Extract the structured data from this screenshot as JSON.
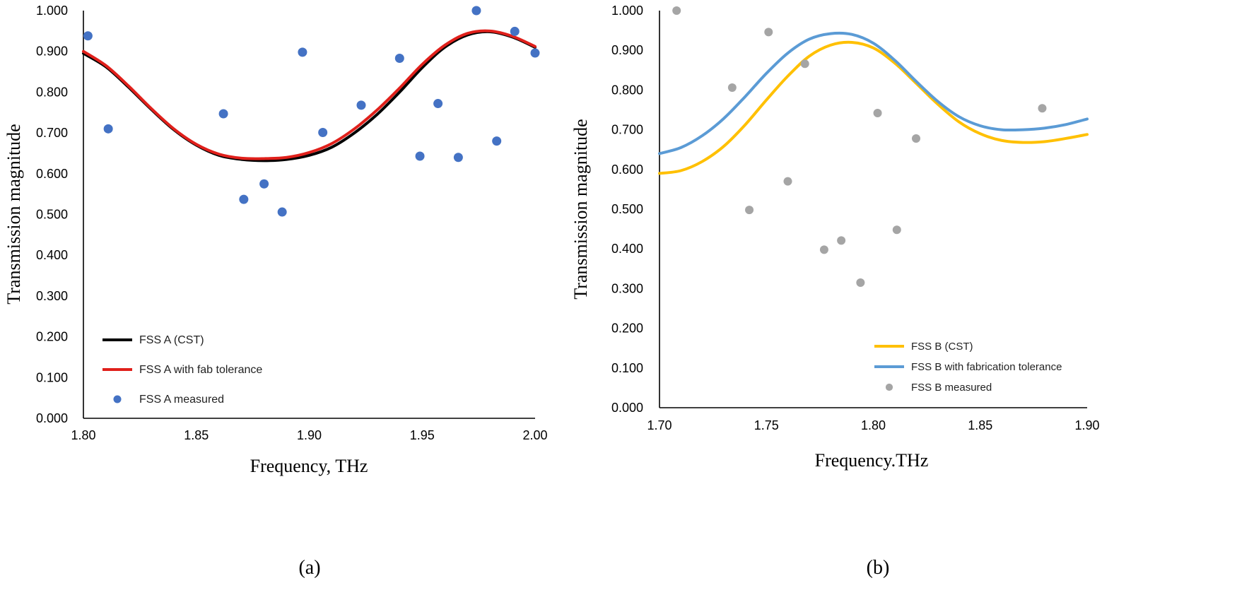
{
  "chart_data": [
    {
      "type": "line",
      "panel_label": "(a)",
      "xlabel": "Frequency,  THz",
      "ylabel": "Transmission magnitude",
      "xlim": [
        1.8,
        2.0
      ],
      "ylim": [
        0.0,
        1.0
      ],
      "x_ticks": [
        "1.80",
        "1.85",
        "1.90",
        "1.95",
        "2.00"
      ],
      "y_ticks": [
        "0.000",
        "0.100",
        "0.200",
        "0.300",
        "0.400",
        "0.500",
        "0.600",
        "0.700",
        "0.800",
        "0.900",
        "1.000"
      ],
      "grid": false,
      "legend_position": "bottom-left",
      "series": [
        {
          "name": "FSS A (CST)",
          "kind": "line",
          "color": "#000000",
          "x": [
            1.8,
            1.81,
            1.82,
            1.83,
            1.84,
            1.85,
            1.86,
            1.87,
            1.88,
            1.89,
            1.9,
            1.91,
            1.92,
            1.93,
            1.94,
            1.95,
            1.96,
            1.97,
            1.98,
            1.99,
            2.0
          ],
          "y": [
            0.895,
            0.862,
            0.812,
            0.758,
            0.708,
            0.67,
            0.645,
            0.635,
            0.632,
            0.635,
            0.645,
            0.665,
            0.7,
            0.745,
            0.8,
            0.86,
            0.91,
            0.94,
            0.948,
            0.935,
            0.91
          ]
        },
        {
          "name": "FSS A with fab tolerance",
          "kind": "line",
          "color": "#e0201b",
          "x": [
            1.8,
            1.81,
            1.82,
            1.83,
            1.84,
            1.85,
            1.86,
            1.87,
            1.88,
            1.89,
            1.9,
            1.91,
            1.92,
            1.93,
            1.94,
            1.95,
            1.96,
            1.97,
            1.98,
            1.99,
            2.0
          ],
          "y": [
            0.9,
            0.865,
            0.815,
            0.76,
            0.71,
            0.672,
            0.648,
            0.638,
            0.637,
            0.64,
            0.652,
            0.674,
            0.71,
            0.756,
            0.81,
            0.868,
            0.915,
            0.944,
            0.95,
            0.937,
            0.912
          ]
        },
        {
          "name": "FSS A measured",
          "kind": "scatter",
          "color": "#4472c4",
          "x": [
            1.802,
            1.811,
            1.862,
            1.871,
            1.88,
            1.888,
            1.897,
            1.906,
            1.923,
            1.94,
            1.949,
            1.957,
            1.966,
            1.974,
            1.983,
            1.991,
            2.0
          ],
          "y": [
            0.938,
            0.71,
            0.747,
            0.537,
            0.575,
            0.506,
            0.898,
            0.701,
            0.768,
            0.883,
            0.643,
            0.772,
            0.64,
            1.0,
            0.68,
            0.949,
            0.896
          ]
        }
      ]
    },
    {
      "type": "line",
      "panel_label": "(b)",
      "xlabel": "Frequency.THz",
      "ylabel": "Transmission  magnitude",
      "xlim": [
        1.7,
        1.9
      ],
      "ylim": [
        0.0,
        1.0
      ],
      "x_ticks": [
        "1.70",
        "1.75",
        "1.80",
        "1.85",
        "1.90"
      ],
      "y_ticks": [
        "0.000",
        "0.100",
        "0.200",
        "0.300",
        "0.400",
        "0.500",
        "0.600",
        "0.700",
        "0.800",
        "0.900",
        "1.000"
      ],
      "grid": false,
      "legend_position": "bottom-right",
      "series": [
        {
          "name": "FSS B (CST)",
          "kind": "line",
          "color": "#ffc000",
          "x": [
            1.7,
            1.71,
            1.72,
            1.73,
            1.74,
            1.75,
            1.76,
            1.77,
            1.78,
            1.79,
            1.8,
            1.81,
            1.82,
            1.83,
            1.84,
            1.85,
            1.86,
            1.87,
            1.88,
            1.89,
            1.9
          ],
          "y": [
            0.59,
            0.597,
            0.62,
            0.658,
            0.712,
            0.775,
            0.835,
            0.885,
            0.913,
            0.92,
            0.906,
            0.868,
            0.817,
            0.765,
            0.72,
            0.69,
            0.673,
            0.668,
            0.67,
            0.678,
            0.688
          ]
        },
        {
          "name": "FSS B with fabrication tolerance",
          "kind": "line",
          "color": "#5b9bd5",
          "x": [
            1.7,
            1.71,
            1.72,
            1.73,
            1.74,
            1.75,
            1.76,
            1.77,
            1.78,
            1.79,
            1.8,
            1.81,
            1.82,
            1.83,
            1.84,
            1.85,
            1.86,
            1.87,
            1.88,
            1.89,
            1.9
          ],
          "y": [
            0.64,
            0.655,
            0.685,
            0.728,
            0.783,
            0.842,
            0.893,
            0.928,
            0.942,
            0.94,
            0.918,
            0.875,
            0.822,
            0.772,
            0.733,
            0.71,
            0.7,
            0.7,
            0.704,
            0.713,
            0.727
          ]
        },
        {
          "name": "FSS B measured",
          "kind": "scatter",
          "color": "#a5a5a5",
          "x": [
            1.708,
            1.734,
            1.742,
            1.751,
            1.76,
            1.768,
            1.777,
            1.785,
            1.794,
            1.802,
            1.811,
            1.82,
            1.879
          ],
          "y": [
            1.0,
            0.806,
            0.498,
            0.946,
            0.57,
            0.866,
            0.398,
            0.421,
            0.315,
            0.742,
            0.448,
            0.678,
            0.754
          ]
        }
      ]
    }
  ]
}
